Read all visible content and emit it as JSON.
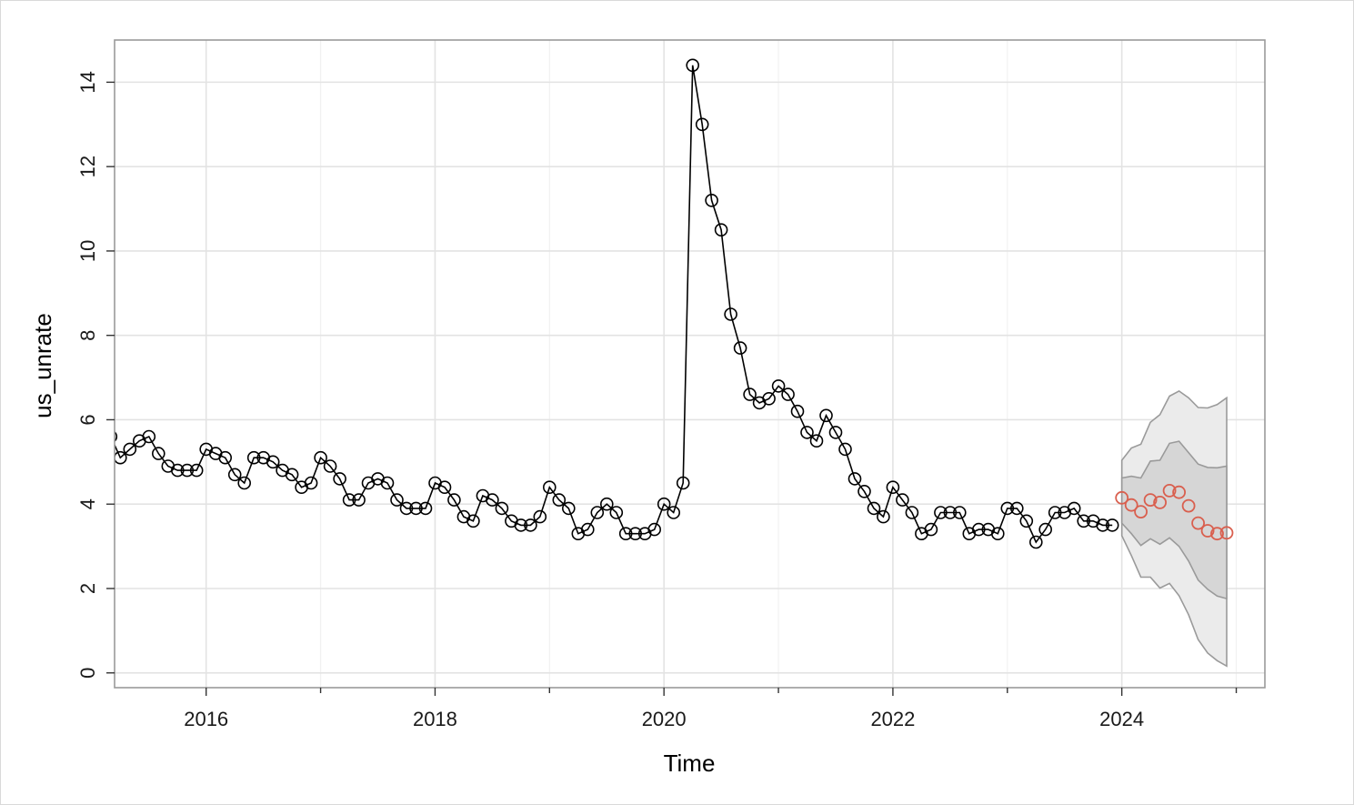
{
  "chart_data": {
    "type": "line",
    "xlabel": "Time",
    "ylabel": "us_unrate",
    "xlim": [
      2015.2,
      2025.25
    ],
    "ylim": [
      -0.35,
      15.0
    ],
    "x_ticks": [
      2016,
      2018,
      2020,
      2022,
      2024
    ],
    "x_tick_labels": [
      "2016",
      "2018",
      "2020",
      "2022",
      "2024"
    ],
    "x_minor_ticks": [
      2017,
      2019,
      2021,
      2023,
      2025
    ],
    "y_ticks": [
      0,
      2,
      4,
      6,
      8,
      10,
      12,
      14
    ],
    "y_tick_labels": [
      "0",
      "2",
      "4",
      "6",
      "8",
      "10",
      "12",
      "14"
    ],
    "grid": true,
    "colors": {
      "observed": "#000000",
      "forecast": "#d95f4e",
      "band_95": "#ebebeb",
      "band_80": "#d6d6d6",
      "band_edge": "#9a9a9a",
      "frame": "#9a9a9a"
    },
    "observed": {
      "start": 2015.167,
      "step": 0.08333,
      "values": [
        5.6,
        5.1,
        5.3,
        5.5,
        5.6,
        5.2,
        4.9,
        4.8,
        4.8,
        4.8,
        5.3,
        5.2,
        5.1,
        4.7,
        4.5,
        5.1,
        5.1,
        5.0,
        4.8,
        4.7,
        4.4,
        4.5,
        5.1,
        4.9,
        4.6,
        4.1,
        4.1,
        4.5,
        4.6,
        4.5,
        4.1,
        3.9,
        3.9,
        3.9,
        4.5,
        4.4,
        4.1,
        3.7,
        3.6,
        4.2,
        4.1,
        3.9,
        3.6,
        3.5,
        3.5,
        3.7,
        4.4,
        4.1,
        3.9,
        3.3,
        3.4,
        3.8,
        4.0,
        3.8,
        3.3,
        3.3,
        3.3,
        3.4,
        4.0,
        3.8,
        4.5,
        14.4,
        13.0,
        11.2,
        10.5,
        8.5,
        7.7,
        6.6,
        6.4,
        6.5,
        6.8,
        6.6,
        6.2,
        5.7,
        5.5,
        6.1,
        5.7,
        5.3,
        4.6,
        4.3,
        3.9,
        3.7,
        4.4,
        4.1,
        3.8,
        3.3,
        3.4,
        3.8,
        3.8,
        3.8,
        3.3,
        3.4,
        3.4,
        3.3,
        3.9,
        3.9,
        3.6,
        3.1,
        3.4,
        3.8,
        3.8,
        3.9,
        3.6,
        3.6,
        3.5,
        3.5
      ]
    },
    "forecast": {
      "start": 2024.0,
      "step": 0.08333,
      "values": [
        4.15,
        3.98,
        3.82,
        4.1,
        4.04,
        4.32,
        4.28,
        3.96,
        3.55,
        3.37,
        3.3,
        3.32
      ],
      "lo80": [
        3.55,
        3.3,
        3.02,
        3.18,
        3.05,
        3.2,
        3.0,
        2.65,
        2.2,
        1.98,
        1.82,
        1.76
      ],
      "hi80": [
        4.62,
        4.66,
        4.62,
        5.02,
        5.04,
        5.44,
        5.49,
        5.22,
        4.95,
        4.87,
        4.86,
        4.9
      ],
      "lo95": [
        3.25,
        2.78,
        2.27,
        2.27,
        2.01,
        2.12,
        1.83,
        1.38,
        0.79,
        0.47,
        0.29,
        0.16
      ],
      "hi95": [
        5.04,
        5.33,
        5.42,
        5.94,
        6.12,
        6.56,
        6.68,
        6.52,
        6.29,
        6.28,
        6.36,
        6.52
      ]
    }
  }
}
